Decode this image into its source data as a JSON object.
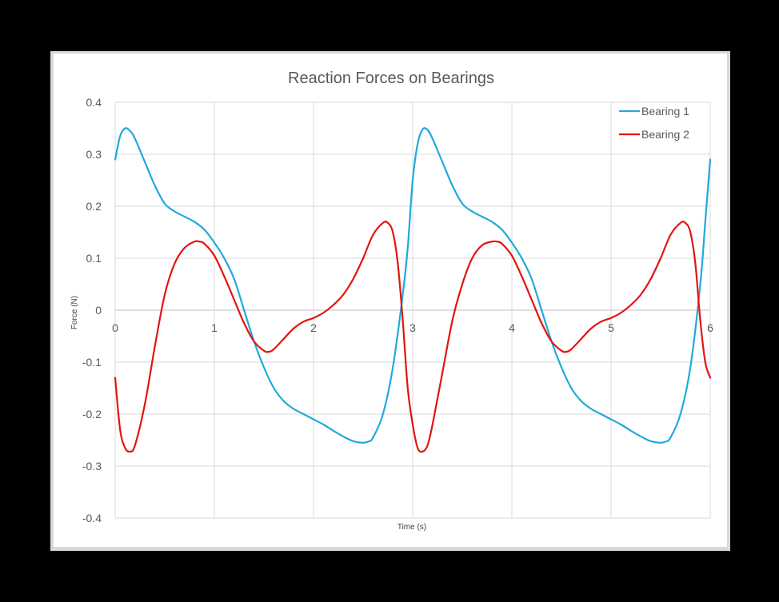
{
  "chart_data": {
    "type": "line",
    "title": "Reaction Forces on Bearings",
    "xlabel": "Time (s)",
    "ylabel": "Force (N)",
    "xlim": [
      0,
      6
    ],
    "ylim": [
      -0.4,
      0.4
    ],
    "x_ticks": [
      0,
      1,
      2,
      3,
      4,
      5,
      6
    ],
    "y_ticks": [
      0.4,
      0.3,
      0.2,
      0.1,
      0,
      -0.1,
      -0.2,
      -0.3,
      -0.4
    ],
    "y_tick_labels": [
      "0.4",
      "0.3",
      "0.2",
      "0.1",
      "0",
      "-0.1",
      "-0.2",
      "-0.3",
      "-0.4"
    ],
    "grid": true,
    "legend_position": "top-right",
    "series": [
      {
        "name": "Bearing 1",
        "color": "#21a9dc",
        "x": [
          0,
          0.05,
          0.1,
          0.15,
          0.2,
          0.3,
          0.4,
          0.5,
          0.6,
          0.7,
          0.8,
          0.9,
          1.0,
          1.1,
          1.2,
          1.3,
          1.4,
          1.5,
          1.6,
          1.7,
          1.8,
          1.9,
          2.0,
          2.1,
          2.2,
          2.3,
          2.4,
          2.5,
          2.55,
          2.6,
          2.7,
          2.8,
          2.9,
          2.95,
          3.0,
          3.05,
          3.1,
          3.15,
          3.2,
          3.3,
          3.4,
          3.5,
          3.6,
          3.7,
          3.8,
          3.9,
          4.0,
          4.1,
          4.2,
          4.3,
          4.4,
          4.5,
          4.6,
          4.7,
          4.8,
          4.9,
          5.0,
          5.1,
          5.2,
          5.3,
          5.4,
          5.5,
          5.55,
          5.6,
          5.7,
          5.8,
          5.9,
          5.95,
          6.0
        ],
        "y": [
          0.29,
          0.335,
          0.35,
          0.345,
          0.33,
          0.285,
          0.24,
          0.205,
          0.19,
          0.18,
          0.17,
          0.155,
          0.13,
          0.1,
          0.06,
          0.0,
          -0.06,
          -0.11,
          -0.15,
          -0.175,
          -0.19,
          -0.2,
          -0.21,
          -0.22,
          -0.232,
          -0.243,
          -0.252,
          -0.255,
          -0.253,
          -0.245,
          -0.2,
          -0.11,
          0.03,
          0.12,
          0.25,
          0.32,
          0.348,
          0.347,
          0.33,
          0.285,
          0.24,
          0.205,
          0.19,
          0.18,
          0.17,
          0.155,
          0.13,
          0.1,
          0.06,
          0.0,
          -0.06,
          -0.11,
          -0.15,
          -0.175,
          -0.19,
          -0.2,
          -0.21,
          -0.22,
          -0.232,
          -0.243,
          -0.252,
          -0.255,
          -0.253,
          -0.245,
          -0.2,
          -0.11,
          0.05,
          0.17,
          0.29
        ]
      },
      {
        "name": "Bearing 2",
        "color": "#e3140f",
        "x": [
          0,
          0.05,
          0.1,
          0.15,
          0.2,
          0.3,
          0.4,
          0.5,
          0.6,
          0.7,
          0.8,
          0.85,
          0.9,
          1.0,
          1.1,
          1.2,
          1.3,
          1.4,
          1.5,
          1.55,
          1.6,
          1.7,
          1.8,
          1.9,
          2.0,
          2.1,
          2.2,
          2.3,
          2.4,
          2.5,
          2.6,
          2.7,
          2.75,
          2.8,
          2.85,
          2.9,
          2.95,
          3.0,
          3.05,
          3.1,
          3.15,
          3.2,
          3.3,
          3.4,
          3.5,
          3.6,
          3.7,
          3.8,
          3.85,
          3.9,
          4.0,
          4.1,
          4.2,
          4.3,
          4.4,
          4.5,
          4.55,
          4.6,
          4.7,
          4.8,
          4.9,
          5.0,
          5.1,
          5.2,
          5.3,
          5.4,
          5.5,
          5.6,
          5.7,
          5.75,
          5.8,
          5.85,
          5.9,
          5.95,
          6.0
        ],
        "y": [
          -0.13,
          -0.23,
          -0.265,
          -0.272,
          -0.26,
          -0.18,
          -0.07,
          0.03,
          0.09,
          0.12,
          0.132,
          0.132,
          0.128,
          0.105,
          0.065,
          0.02,
          -0.025,
          -0.06,
          -0.078,
          -0.08,
          -0.075,
          -0.055,
          -0.035,
          -0.022,
          -0.015,
          -0.005,
          0.01,
          0.03,
          0.06,
          0.1,
          0.145,
          0.168,
          0.168,
          0.15,
          0.09,
          -0.02,
          -0.15,
          -0.22,
          -0.265,
          -0.272,
          -0.26,
          -0.22,
          -0.12,
          -0.02,
          0.05,
          0.1,
          0.125,
          0.132,
          0.132,
          0.128,
          0.105,
          0.065,
          0.02,
          -0.025,
          -0.06,
          -0.078,
          -0.08,
          -0.075,
          -0.055,
          -0.035,
          -0.022,
          -0.015,
          -0.005,
          0.01,
          0.03,
          0.06,
          0.1,
          0.145,
          0.168,
          0.168,
          0.15,
          0.09,
          -0.02,
          -0.1,
          -0.13
        ]
      }
    ]
  }
}
